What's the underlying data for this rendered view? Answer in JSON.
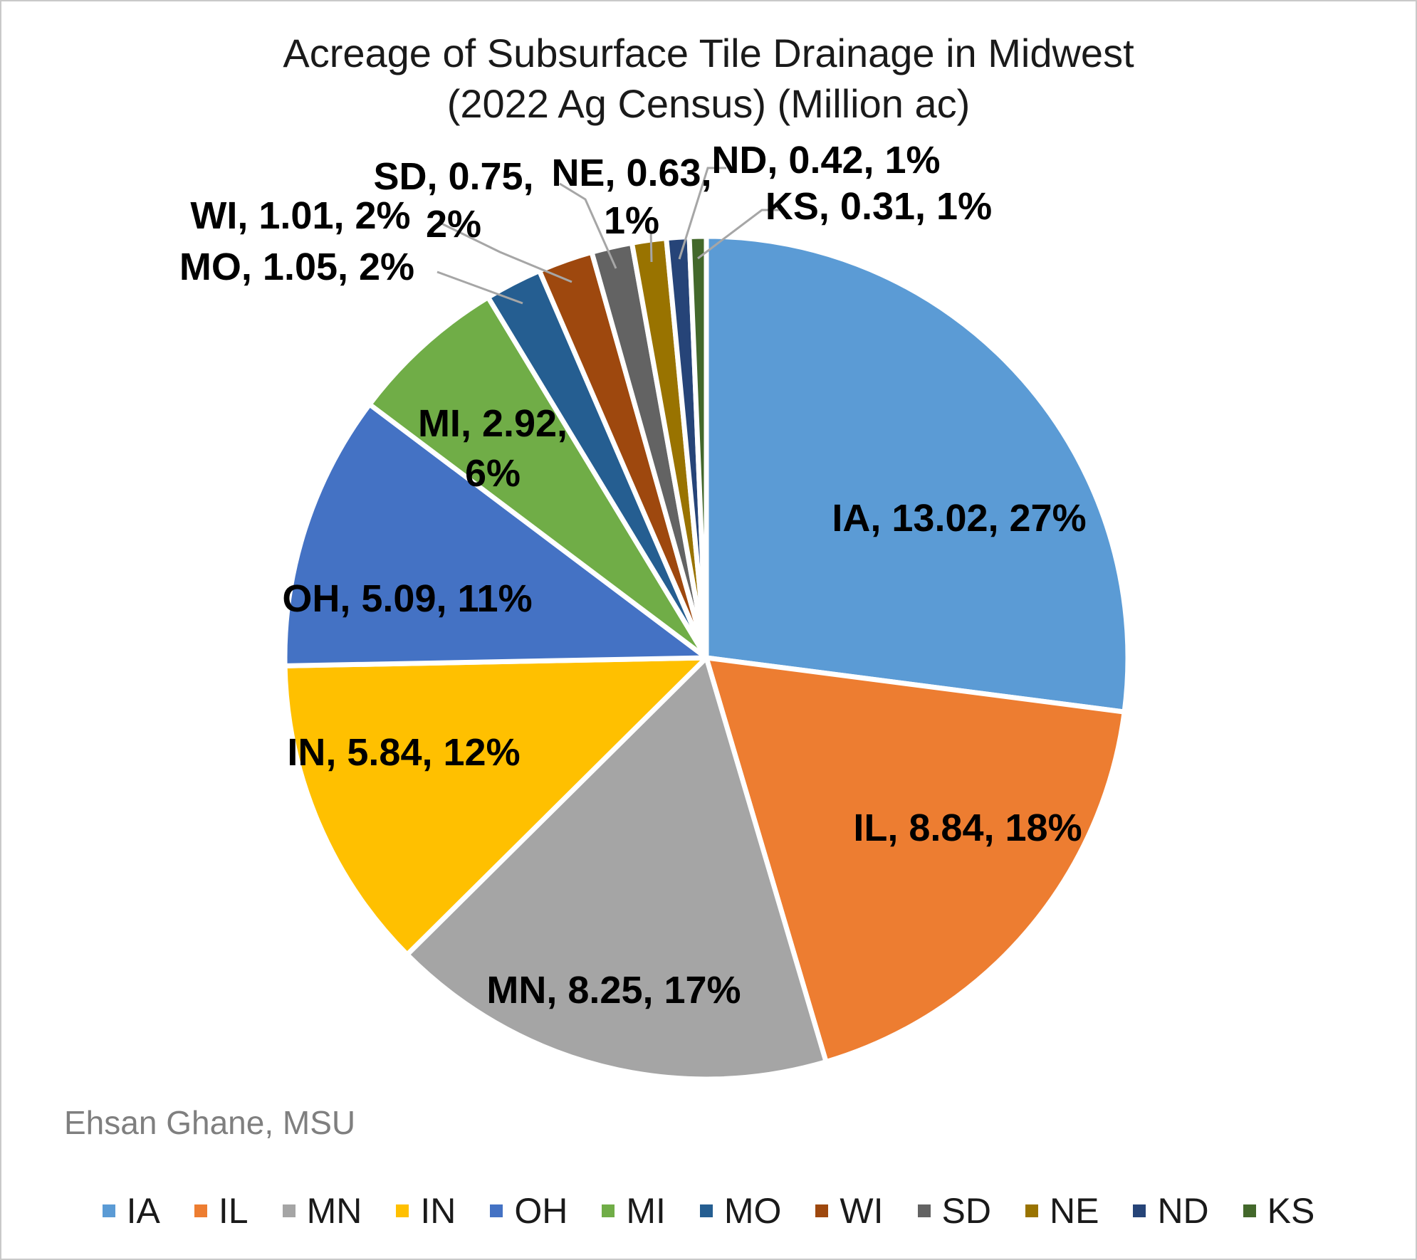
{
  "chart_data": {
    "type": "pie",
    "title_lines": [
      "Acreage of Subsurface Tile Drainage in Midwest",
      "(2022 Ag Census) (Million ac)"
    ],
    "unit": "Million ac",
    "attribution": "Ehsan Ghane, MSU",
    "legend_position": "bottom",
    "total": 48.13,
    "start_angle_deg": 0,
    "direction": "clockwise",
    "slices": [
      {
        "state": "IA",
        "value": 13.02,
        "pct": "27%",
        "color": "#5B9BD5",
        "label_lines": [
          "IA, 13.02, 27%"
        ]
      },
      {
        "state": "IL",
        "value": 8.84,
        "pct": "18%",
        "color": "#ED7D31",
        "label_lines": [
          "IL, 8.84, 18%"
        ]
      },
      {
        "state": "MN",
        "value": 8.25,
        "pct": "17%",
        "color": "#A5A5A5",
        "label_lines": [
          "MN, 8.25, 17%"
        ]
      },
      {
        "state": "IN",
        "value": 5.84,
        "pct": "12%",
        "color": "#FFC000",
        "label_lines": [
          "IN, 5.84, 12%"
        ]
      },
      {
        "state": "OH",
        "value": 5.09,
        "pct": "11%",
        "color": "#4472C4",
        "label_lines": [
          "OH, 5.09, 11%"
        ]
      },
      {
        "state": "MI",
        "value": 2.92,
        "pct": "6%",
        "color": "#70AD47",
        "label_lines": [
          "MI, 2.92,",
          "6%"
        ]
      },
      {
        "state": "MO",
        "value": 1.05,
        "pct": "2%",
        "color": "#255E91",
        "label_lines": [
          "MO, 1.05, 2%"
        ]
      },
      {
        "state": "WI",
        "value": 1.01,
        "pct": "2%",
        "color": "#9E480E",
        "label_lines": [
          "WI, 1.01, 2%"
        ]
      },
      {
        "state": "SD",
        "value": 0.75,
        "pct": "2%",
        "color": "#636363",
        "label_lines": [
          "SD, 0.75,",
          "2%"
        ]
      },
      {
        "state": "NE",
        "value": 0.63,
        "pct": "1%",
        "color": "#997300",
        "label_lines": [
          "NE, 0.63,",
          "1%"
        ]
      },
      {
        "state": "ND",
        "value": 0.42,
        "pct": "1%",
        "color": "#264478",
        "label_lines": [
          "ND, 0.42, 1%"
        ]
      },
      {
        "state": "KS",
        "value": 0.31,
        "pct": "1%",
        "color": "#43682B",
        "label_lines": [
          "KS, 0.31, 1%"
        ]
      }
    ],
    "legend": [
      "IA",
      "IL",
      "MN",
      "IN",
      "OH",
      "MI",
      "MO",
      "WI",
      "SD",
      "NE",
      "ND",
      "KS"
    ]
  }
}
